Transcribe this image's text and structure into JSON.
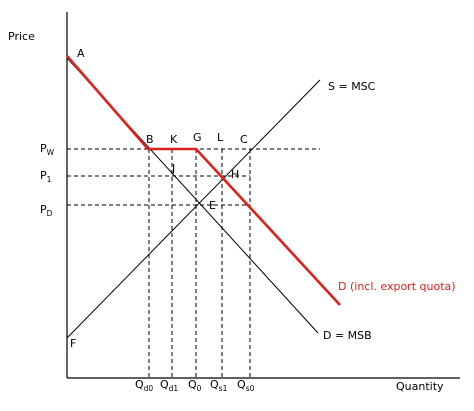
{
  "axes": {
    "y_label": "Price",
    "x_label": "Quantity"
  },
  "points": {
    "A": "A",
    "B": "B",
    "K": "K",
    "G": "G",
    "L": "L",
    "C": "C",
    "J": "J",
    "H": "H",
    "E": "E",
    "F": "F"
  },
  "curves": {
    "supply": "S = MSC",
    "demand": "D = MSB",
    "demand_quota": "D (incl. export quota)"
  },
  "price_levels": [
    {
      "main": "P",
      "sub": "W"
    },
    {
      "main": "P",
      "sub": "1"
    },
    {
      "main": "P",
      "sub": "D"
    }
  ],
  "quantity_levels": [
    {
      "main": "Q",
      "sub": "d0"
    },
    {
      "main": "Q",
      "sub": "d1"
    },
    {
      "main": "Q",
      "sub": "0"
    },
    {
      "main": "Q",
      "sub": "s1"
    },
    {
      "main": "Q",
      "sub": "s0"
    }
  ],
  "colors": {
    "quota_demand": "#e0201b",
    "lines": "#000000"
  }
}
